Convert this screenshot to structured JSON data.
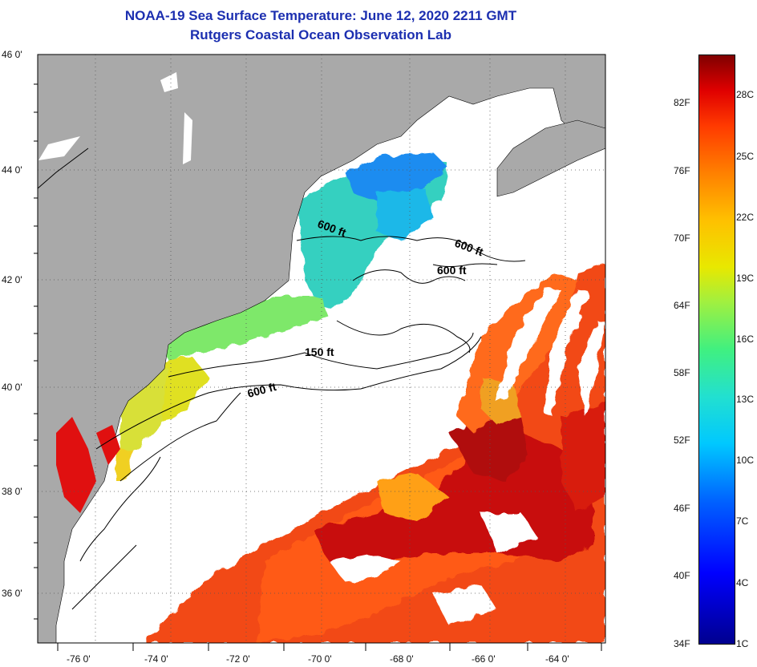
{
  "header": {
    "title": "NOAA-19 Sea Surface Temperature:  June 12, 2020 2211 GMT",
    "subtitle": "Rutgers Coastal Ocean Observation Lab"
  },
  "axes": {
    "lat_labels": [
      "46 0'",
      "44 0'",
      "42 0'",
      "40 0'",
      "38 0'",
      "36 0'"
    ],
    "lon_labels": [
      "-76 0'",
      "-74 0'",
      "-72 0'",
      "-70 0'",
      "-68 0'",
      "-66 0'",
      "-64 0'"
    ]
  },
  "contours": {
    "label_600_a": "600 ft",
    "label_600_b": "600 ft",
    "label_600_c": "600 ft",
    "label_150": "150 ft",
    "label_600_d": "600 ft"
  },
  "colorbar": {
    "fahrenheit": [
      "82F",
      "76F",
      "70F",
      "64F",
      "58F",
      "52F",
      "46F",
      "40F",
      "34F"
    ],
    "celsius": [
      "28C",
      "25C",
      "22C",
      "19C",
      "16C",
      "13C",
      "10C",
      "7C",
      "4C",
      "1C"
    ]
  },
  "colors": {
    "land": "#a9a9a9",
    "title": "#1c2fb0"
  }
}
